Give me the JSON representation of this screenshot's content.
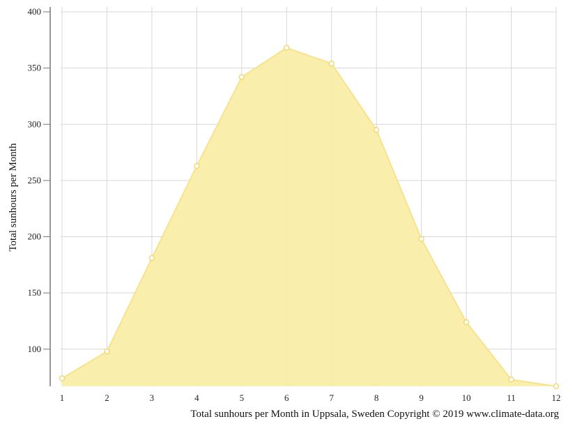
{
  "chart_data": {
    "type": "area",
    "title": "",
    "xlabel": "",
    "ylabel": "Total sunhours per Month",
    "caption": "Total sunhours per Month in Uppsala, Sweden Copyright © 2019 www.climate-data.org",
    "x": [
      1,
      2,
      3,
      4,
      5,
      6,
      7,
      8,
      9,
      10,
      11,
      12
    ],
    "series": [
      {
        "values": [
          74,
          98,
          181,
          263,
          342,
          368,
          354,
          295,
          198,
          124,
          73,
          67
        ]
      }
    ],
    "ylim": [
      67,
      400
    ],
    "yticks": [
      100,
      150,
      200,
      250,
      300,
      350,
      400
    ],
    "grid": true,
    "legend": "none",
    "colors": {
      "fill": "#faeda9",
      "line": "#f7e28d",
      "marker_stroke": "#f0d564",
      "marker_fill": "#ffffff",
      "grid": "#d7d7d7",
      "axis": "#777777"
    }
  }
}
